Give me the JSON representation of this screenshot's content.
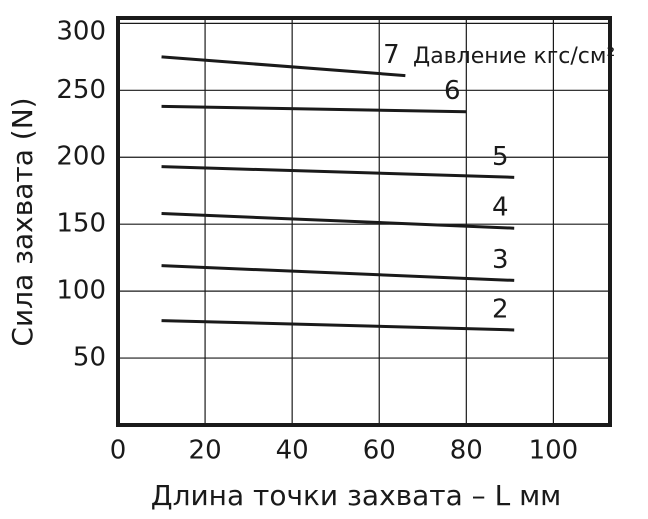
{
  "chart_data": {
    "type": "line",
    "legend_title": "Давление кгс/см²",
    "x_label": "Длина точки захвата – L мм",
    "y_label": "Сила захвата (N)",
    "xlim": [
      0,
      113
    ],
    "xticks": [
      0,
      20,
      40,
      60,
      80,
      100
    ],
    "ylim": [
      0,
      304
    ],
    "yticks": [
      50,
      100,
      150,
      200,
      250,
      300
    ],
    "grid": true,
    "color": "#1a1a1a",
    "series": [
      {
        "name": "7",
        "x": [
          10,
          66
        ],
        "values": [
          275,
          261
        ]
      },
      {
        "name": "6",
        "x": [
          10,
          80
        ],
        "values": [
          238,
          234
        ]
      },
      {
        "name": "5",
        "x": [
          10,
          91
        ],
        "values": [
          193,
          185
        ]
      },
      {
        "name": "4",
        "x": [
          10,
          91
        ],
        "values": [
          158,
          147
        ]
      },
      {
        "name": "3",
        "x": [
          10,
          91
        ],
        "values": [
          119,
          108
        ]
      },
      {
        "name": "2",
        "x": [
          10,
          91
        ],
        "values": [
          78,
          71
        ]
      }
    ]
  }
}
